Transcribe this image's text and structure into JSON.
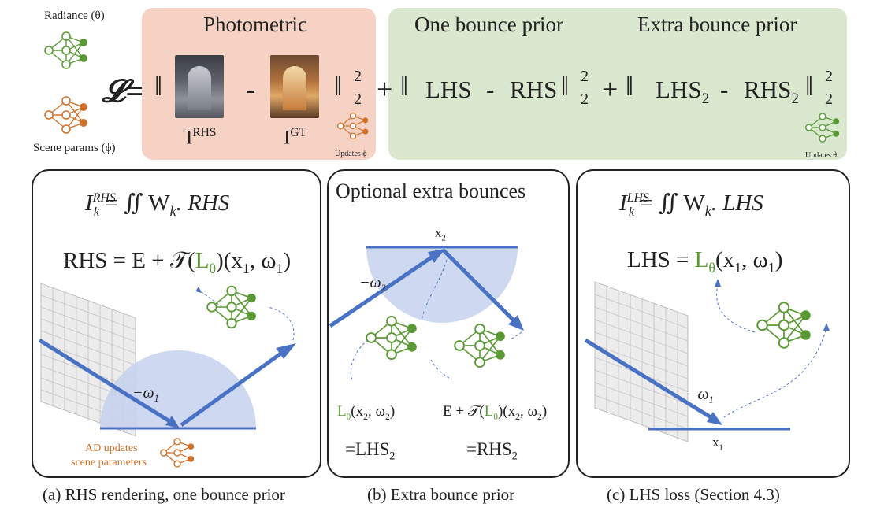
{
  "top": {
    "radiance_label": "Radiance (θ)",
    "scene_label": "Scene params (ϕ)",
    "loss_symbol": "𝓛=",
    "photometric_title": "Photometric",
    "one_bounce_title": "One bounce prior",
    "extra_bounce_title": "Extra bounce prior",
    "image_rhs": "I",
    "image_rhs_sup": "RHS",
    "image_gt": "I",
    "image_gt_sup": "GT",
    "minus": "-",
    "plus": "+",
    "norm_sup": "2",
    "norm_sub": "2",
    "lhs": "LHS",
    "rhs": "RHS",
    "lhs2": "LHS",
    "rhs2": "RHS",
    "sub2": "2",
    "updates_phi": "Updates ϕ",
    "updates_theta": "Updates θ"
  },
  "panel_a": {
    "integral_lhs": "I",
    "integral_sup": "RHS",
    "integral_sub": "k",
    "integral_rhs": "= ∬ W",
    "integral_wsub": "k",
    "integral_tail": ". RHS",
    "rhs_eq_prefix": "RHS = E + 𝒯(",
    "rhs_eq_L": "L",
    "rhs_eq_theta": "θ",
    "rhs_eq_suffix": ")(x",
    "rhs_eq_tail": ", ω",
    "rhs_eq_end": ")",
    "omega_label": "−ω",
    "omega_sub": "1",
    "ad_updates_1": "AD updates",
    "ad_updates_2": "scene parameters",
    "caption": "(a) RHS rendering, one bounce prior"
  },
  "panel_b": {
    "title": "Optional extra bounces",
    "x2_label": "x",
    "x2_sub": "2",
    "omega_label": "−ω",
    "omega_sub": "2",
    "left_L": "L",
    "left_theta": "θ",
    "left_args": "(x",
    "left_args2": ", ω",
    "left_end": ")",
    "left_eq": "=LHS",
    "right_prefix": "E + 𝒯(",
    "right_L": "L",
    "right_theta": "θ",
    "right_args": ")(x",
    "right_args2": ", ω",
    "right_end": ")",
    "right_eq": "=RHS",
    "sub2": "2",
    "caption": "(b) Extra bounce prior"
  },
  "panel_c": {
    "integral_lhs": "I",
    "integral_sup": "LHS",
    "integral_sub": "k",
    "integral_rhs": "= ∬ W",
    "integral_wsub": "k",
    "integral_tail": ". LHS",
    "lhs_prefix": "LHS = ",
    "lhs_L": "L",
    "lhs_theta": "θ",
    "lhs_args": "(x",
    "lhs_args2": ", ω",
    "lhs_end": ")",
    "sub1": "1",
    "omega_label": "−ω",
    "omega_sub": "1",
    "x1_label": "x",
    "x1_sub": "1",
    "caption": "(c) LHS loss (Section 4.3)"
  },
  "colors": {
    "green": "#5a9a35",
    "orange": "#d0702a",
    "arrow_blue": "#4a72c4",
    "photometric_bg": "#f6d2c4",
    "prior_bg": "#d9e8cf"
  },
  "icons": [
    "neural-network-icon"
  ]
}
